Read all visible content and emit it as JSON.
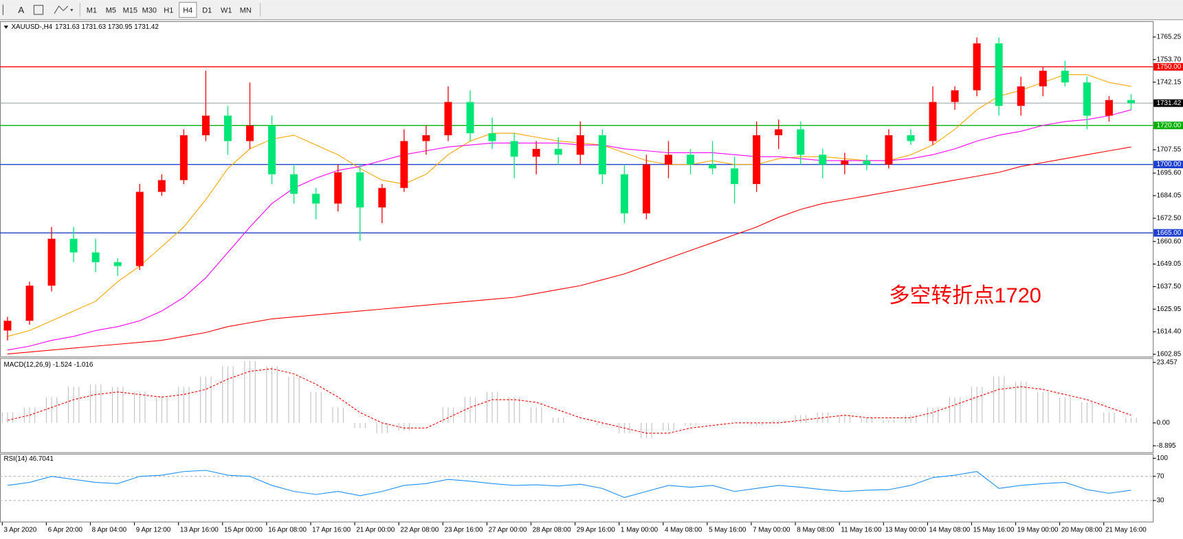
{
  "toolbar": {
    "timeframes": [
      "M1",
      "M5",
      "M15",
      "M30",
      "H1",
      "H4",
      "D1",
      "W1",
      "MN"
    ],
    "active": "H4"
  },
  "chart_data": [
    {
      "type": "candlestick",
      "title": "XAUUSD-,H4",
      "subtitle": "1731.63 1731.63 1730.95 1731.42",
      "categories": [
        "3 Apr 2020",
        null,
        "6 Apr 20:00",
        null,
        "8 Apr 04:00",
        null,
        "9 Apr 12:00",
        null,
        "13 Apr 16:00",
        null,
        "15 Apr 00:00",
        null,
        "16 Apr 08:00",
        null,
        "17 Apr 16:00",
        null,
        "21 Apr 00:00",
        null,
        "22 Apr 08:00",
        null,
        "23 Apr 16:00",
        null,
        "27 Apr 00:00",
        null,
        "28 Apr 08:00",
        null,
        "29 Apr 16:00",
        null,
        "1 May 00:00",
        null,
        "4 May 08:00",
        null,
        "5 May 16:00",
        null,
        "7 May 00:00",
        null,
        "8 May 08:00",
        null,
        "11 May 16:00",
        null,
        "13 May 00:00",
        null,
        "14 May 08:00",
        null,
        "15 May 16:00",
        null,
        "19 May 00:00",
        null,
        "20 May 08:00",
        null,
        "21 May 16:00",
        null
      ],
      "open": [
        1615,
        1620,
        1638,
        1662,
        1655,
        1650,
        1648,
        1686,
        1692,
        1715,
        1725,
        1712,
        1720,
        1695,
        1685,
        1680,
        1696,
        1678,
        1688,
        1712,
        1715,
        1732,
        1716,
        1712,
        1704,
        1708,
        1705,
        1715,
        1695,
        1675,
        1700,
        1705,
        1700,
        1698,
        1690,
        1715,
        1718,
        1705,
        1700,
        1702,
        1700,
        1715,
        1712,
        1732,
        1738,
        1762,
        1730,
        1740,
        1748,
        1742,
        1725,
        1733
      ],
      "high": [
        1622,
        1640,
        1668,
        1668,
        1662,
        1652,
        1690,
        1695,
        1718,
        1748,
        1730,
        1742,
        1725,
        1700,
        1688,
        1700,
        1700,
        1690,
        1718,
        1720,
        1740,
        1738,
        1724,
        1716,
        1712,
        1714,
        1722,
        1718,
        1700,
        1705,
        1712,
        1708,
        1712,
        1704,
        1722,
        1723,
        1722,
        1708,
        1706,
        1705,
        1718,
        1718,
        1740,
        1740,
        1765,
        1765,
        1745,
        1750,
        1753,
        1745,
        1735,
        1736
      ],
      "low": [
        1610,
        1618,
        1635,
        1650,
        1645,
        1643,
        1646,
        1684,
        1690,
        1712,
        1705,
        1708,
        1690,
        1680,
        1672,
        1676,
        1661,
        1670,
        1686,
        1705,
        1712,
        1712,
        1708,
        1693,
        1695,
        1700,
        1700,
        1690,
        1670,
        1672,
        1693,
        1695,
        1695,
        1680,
        1686,
        1708,
        1700,
        1693,
        1695,
        1697,
        1698,
        1710,
        1710,
        1728,
        1735,
        1725,
        1725,
        1735,
        1740,
        1718,
        1722,
        1728
      ],
      "close": [
        1620,
        1638,
        1662,
        1655,
        1650,
        1648,
        1686,
        1692,
        1715,
        1725,
        1712,
        1720,
        1695,
        1685,
        1680,
        1696,
        1678,
        1688,
        1712,
        1715,
        1732,
        1716,
        1712,
        1704,
        1708,
        1705,
        1715,
        1695,
        1675,
        1700,
        1705,
        1700,
        1698,
        1690,
        1715,
        1718,
        1705,
        1700,
        1702,
        1700,
        1715,
        1712,
        1732,
        1738,
        1762,
        1730,
        1740,
        1748,
        1742,
        1725,
        1733,
        1731.42
      ],
      "up_color": "#ff0000",
      "down_color": "#00e676",
      "ylim": [
        1602.08,
        1772.6
      ],
      "yticks": [
        {
          "value": 1765.25,
          "label": "1765.25"
        },
        {
          "value": 1753.7,
          "label": "1753.70"
        },
        {
          "value": 1742.15,
          "label": "1742.15"
        },
        {
          "value": 1707.55,
          "label": "1707.55"
        },
        {
          "value": 1695.6,
          "label": "1695.60"
        },
        {
          "value": 1684.05,
          "label": "1684.05"
        },
        {
          "value": 1672.5,
          "label": "1672.50"
        },
        {
          "value": 1660.6,
          "label": "1660.60"
        },
        {
          "value": 1649.05,
          "label": "1649.05"
        },
        {
          "value": 1637.5,
          "label": "1637.50"
        },
        {
          "value": 1625.95,
          "label": "1625.95"
        },
        {
          "value": 1614.4,
          "label": "1614.40"
        },
        {
          "value": 1602.85,
          "label": "1602.85"
        }
      ],
      "ma": [
        {
          "color": "#ffa500",
          "values": [
            1612,
            1615,
            1620,
            1625,
            1630,
            1640,
            1648,
            1658,
            1668,
            1682,
            1698,
            1708,
            1713,
            1715,
            1710,
            1705,
            1698,
            1692,
            1690,
            1695,
            1705,
            1712,
            1716,
            1716,
            1714,
            1712,
            1711,
            1710,
            1706,
            1702,
            1700,
            1700,
            1702,
            1700,
            1700,
            1703,
            1704,
            1704,
            1703,
            1702,
            1702,
            1705,
            1710,
            1718,
            1728,
            1735,
            1738,
            1742,
            1746,
            1746,
            1742,
            1740
          ]
        },
        {
          "color": "#ff00ff",
          "values": [
            1605,
            1607,
            1610,
            1612,
            1615,
            1617,
            1620,
            1625,
            1632,
            1642,
            1655,
            1668,
            1680,
            1688,
            1693,
            1697,
            1699,
            1702,
            1705,
            1707,
            1709,
            1710,
            1711,
            1711,
            1711,
            1711,
            1710,
            1710,
            1708,
            1707,
            1706,
            1706,
            1706,
            1705,
            1704,
            1704,
            1703,
            1702,
            1702,
            1702,
            1702,
            1703,
            1705,
            1708,
            1712,
            1715,
            1717,
            1720,
            1722,
            1723,
            1725,
            1728
          ]
        },
        {
          "color": "#ff0000",
          "values": [
            1603,
            1604,
            1605,
            1606,
            1607,
            1608,
            1609,
            1610,
            1612,
            1614,
            1617,
            1619,
            1621,
            1622,
            1623,
            1624,
            1625,
            1626,
            1627,
            1628,
            1629,
            1630,
            1631,
            1632,
            1634,
            1636,
            1638,
            1641,
            1644,
            1648,
            1652,
            1656,
            1660,
            1664,
            1668,
            1673,
            1677,
            1680,
            1682,
            1684,
            1686,
            1688,
            1690,
            1692,
            1694,
            1696,
            1699,
            1701,
            1703,
            1705,
            1707,
            1709
          ]
        }
      ],
      "levels": [
        {
          "value": 1750,
          "label": "1750.00",
          "color": "#ff0000"
        },
        {
          "value": 1731.42,
          "label": "1731.42",
          "color": "#000000"
        },
        {
          "value": 1720,
          "label": "1720.00",
          "color": "#00b000"
        },
        {
          "value": 1700,
          "label": "1700.00",
          "color": "#1e40d0"
        },
        {
          "value": 1665,
          "label": "1665.00",
          "color": "#1e40d0"
        }
      ],
      "annotation": {
        "text": "多空转折点1720",
        "color": "#ff0000"
      }
    },
    {
      "type": "macd",
      "title": "MACD(12,26,9) -1.524 -1.016",
      "histogram": [
        4,
        6,
        10,
        14,
        15,
        14,
        12,
        10,
        14,
        18,
        22,
        24,
        22,
        18,
        12,
        6,
        -2,
        -4,
        -3,
        0,
        6,
        10,
        12,
        10,
        6,
        2,
        0,
        -1,
        -4,
        -6,
        -3,
        -1,
        0,
        0,
        -1,
        1,
        3,
        4,
        3,
        2,
        1,
        3,
        6,
        10,
        14,
        18,
        16,
        12,
        10,
        8,
        4,
        2
      ],
      "signal": [
        1,
        3,
        6,
        9,
        11,
        12,
        11,
        10,
        11,
        13,
        17,
        20,
        21,
        19,
        15,
        10,
        4,
        0,
        -2,
        -2,
        2,
        6,
        9,
        9,
        8,
        5,
        2,
        0,
        -2,
        -4,
        -4,
        -2,
        -1,
        0,
        0,
        0,
        1,
        2,
        3,
        2,
        2,
        2,
        4,
        7,
        10,
        13,
        14,
        13,
        11,
        9,
        6,
        3
      ],
      "hist_color": "#c0c0c0",
      "signal_color": "#ff0000",
      "ylim": [
        -11.4,
        24.57
      ],
      "yticks": [
        23.457,
        {
          "value": 0,
          "label": "0.00"
        },
        -8.895
      ]
    },
    {
      "type": "rsi",
      "title": "RSI(14) 46.7041",
      "values": [
        55,
        60,
        70,
        65,
        60,
        58,
        70,
        72,
        78,
        80,
        72,
        70,
        55,
        45,
        40,
        45,
        38,
        45,
        55,
        58,
        65,
        62,
        58,
        55,
        56,
        54,
        57,
        50,
        35,
        45,
        55,
        52,
        55,
        45,
        50,
        55,
        52,
        48,
        45,
        47,
        48,
        55,
        68,
        72,
        78,
        50,
        55,
        58,
        60,
        48,
        42,
        47
      ],
      "color": "#1e90ff",
      "ylim": [
        -5,
        105
      ],
      "yticks": [
        100,
        70,
        30
      ],
      "levels": [
        70,
        30
      ]
    }
  ]
}
